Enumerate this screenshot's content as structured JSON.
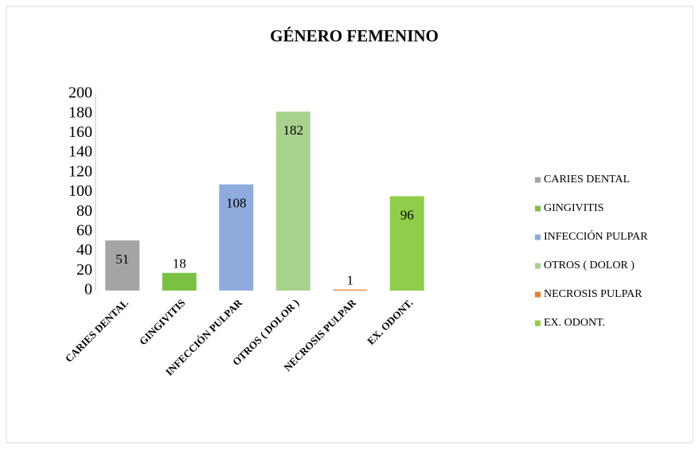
{
  "chart_data": {
    "type": "bar",
    "title": "GÉNERO FEMENINO",
    "categories": [
      "CARIES DENTAL",
      "GINGIVITIS",
      "INFECCIÓN PULPAR",
      "OTROS ( DOLOR )",
      "NECROSIS  PULPAR",
      "EX. ODONT."
    ],
    "values": [
      51,
      18,
      108,
      182,
      1,
      96
    ],
    "colors": [
      "#a5a5a5",
      "#7ac143",
      "#8faadc",
      "#a9d18e",
      "#ed7d31",
      "#8fce4a"
    ],
    "ylim": [
      0,
      200
    ],
    "yticks": [
      0,
      20,
      40,
      60,
      80,
      100,
      120,
      140,
      160,
      180,
      200
    ],
    "grid": false,
    "legend": "right"
  }
}
